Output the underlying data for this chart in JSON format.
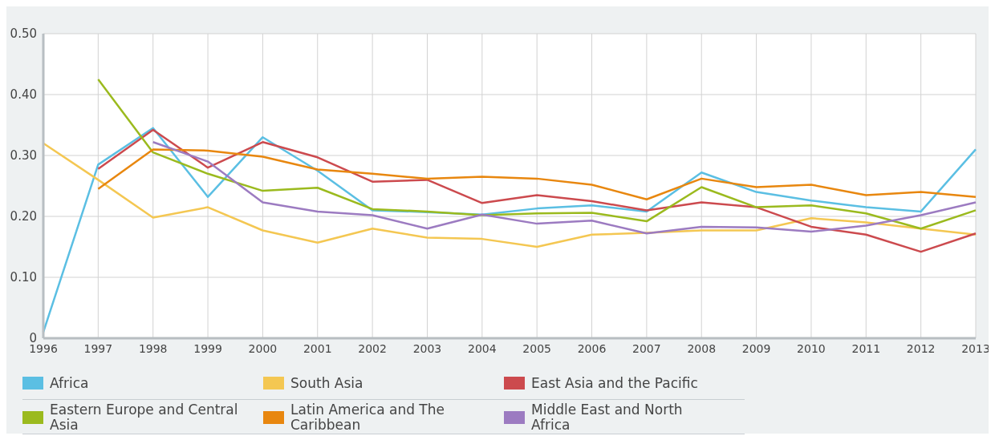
{
  "chart_data": {
    "type": "line",
    "categories": [
      "1996",
      "1997",
      "1998",
      "1999",
      "2000",
      "2001",
      "2002",
      "2003",
      "2004",
      "2005",
      "2006",
      "2007",
      "2008",
      "2009",
      "2010",
      "2011",
      "2012",
      "2013"
    ],
    "series": [
      {
        "name": "Africa",
        "color": "#5bbfe3",
        "values": [
          0.01,
          0.285,
          0.345,
          0.232,
          0.33,
          0.275,
          0.21,
          0.207,
          0.203,
          0.213,
          0.218,
          0.208,
          0.272,
          0.24,
          0.226,
          0.215,
          0.208,
          0.31
        ]
      },
      {
        "name": "South Asia",
        "color": "#f4c752",
        "values": [
          0.32,
          0.26,
          0.198,
          0.215,
          0.177,
          0.157,
          0.18,
          0.165,
          0.163,
          0.15,
          0.17,
          0.173,
          0.177,
          0.177,
          0.197,
          0.19,
          0.18,
          0.17
        ]
      },
      {
        "name": "East Asia and the Pacific",
        "color": "#cc4a4e",
        "values": [
          null,
          0.278,
          0.342,
          0.28,
          0.322,
          0.297,
          0.257,
          0.26,
          0.222,
          0.235,
          0.225,
          0.21,
          0.223,
          0.215,
          0.183,
          0.17,
          0.142,
          0.172
        ]
      },
      {
        "name": "Eastern Europe and Central Asia",
        "color": "#9bba1e",
        "values": [
          null,
          0.425,
          0.305,
          0.27,
          0.242,
          0.247,
          0.212,
          0.208,
          0.202,
          0.205,
          0.206,
          0.192,
          0.248,
          0.215,
          0.218,
          0.205,
          0.18,
          0.21
        ]
      },
      {
        "name": "Latin America and The Caribbean",
        "color": "#e8870f",
        "values": [
          null,
          0.245,
          0.31,
          0.308,
          0.298,
          0.277,
          0.27,
          0.262,
          0.265,
          0.262,
          0.252,
          0.228,
          0.262,
          0.248,
          0.252,
          0.235,
          0.24,
          0.232
        ]
      },
      {
        "name": "Middle East and North Africa",
        "color": "#9c7bc1",
        "values": [
          null,
          null,
          0.322,
          0.29,
          0.223,
          0.208,
          0.202,
          0.18,
          0.203,
          0.188,
          0.193,
          0.172,
          0.183,
          0.182,
          0.175,
          0.185,
          0.202,
          0.223
        ]
      }
    ],
    "ylim": [
      0,
      0.5
    ],
    "yticks": [
      {
        "value": 0,
        "label": "0"
      },
      {
        "value": 0.1,
        "label": "0.10"
      },
      {
        "value": 0.2,
        "label": "0.20"
      },
      {
        "value": 0.3,
        "label": "0.30"
      },
      {
        "value": 0.4,
        "label": "0.40"
      },
      {
        "value": 0.5,
        "label": "0.50"
      }
    ],
    "grid": true,
    "legend": "bottom",
    "marker": "none",
    "line_style": "solid"
  }
}
